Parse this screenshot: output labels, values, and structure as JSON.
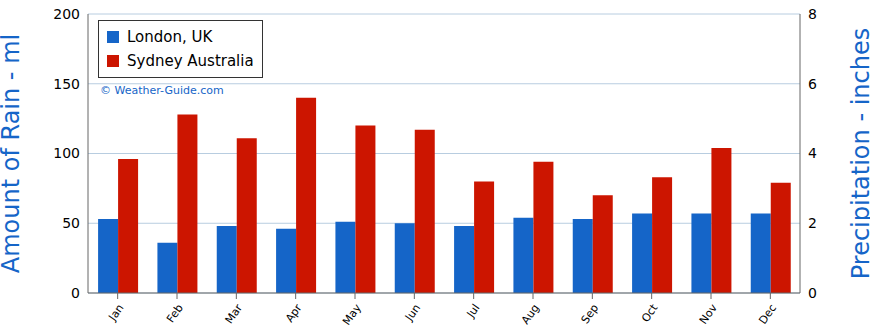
{
  "chart_data": {
    "type": "bar",
    "categories": [
      "Jan",
      "Feb",
      "Mar",
      "Apr",
      "May",
      "Jun",
      "Jul",
      "Aug",
      "Sep",
      "Oct",
      "Nov",
      "Dec"
    ],
    "series": [
      {
        "name": "London, UK",
        "color": "#1565c8",
        "values": [
          53,
          36,
          48,
          46,
          51,
          50,
          48,
          54,
          53,
          57,
          57,
          57
        ]
      },
      {
        "name": "Sydney Australia",
        "color": "#cc1500",
        "values": [
          96,
          128,
          111,
          140,
          120,
          117,
          80,
          94,
          70,
          83,
          104,
          79
        ]
      }
    ],
    "y_label": "Amount of Rain - ml",
    "y2_label": "Precipitation - inches",
    "ylim": [
      0,
      200
    ],
    "yticks": [
      0,
      50,
      100,
      150,
      200
    ],
    "y2lim": [
      0,
      8
    ],
    "y2ticks": [
      0,
      2,
      4,
      6,
      8
    ],
    "grid": true,
    "legend": "upper left",
    "annotations": [
      "© Weather-Guide.com"
    ]
  }
}
